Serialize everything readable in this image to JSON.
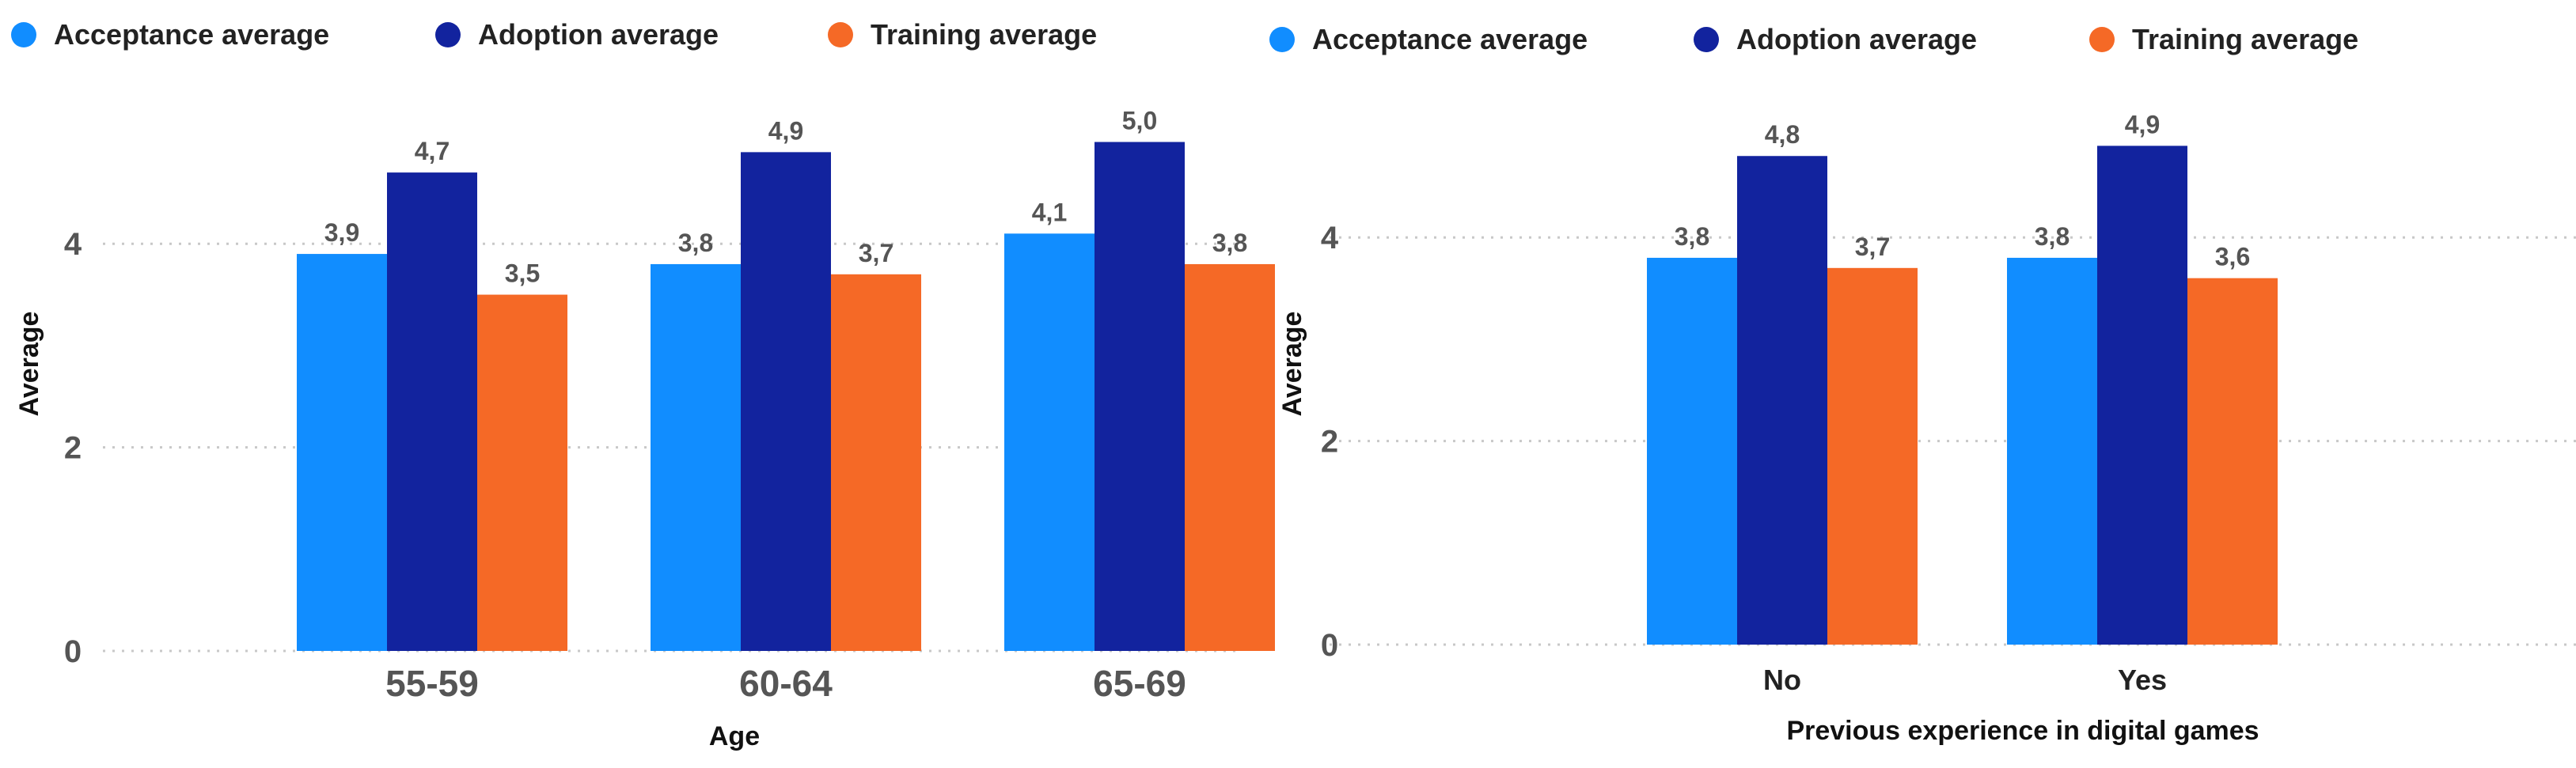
{
  "colors": {
    "acceptance": "#118DFF",
    "adoption": "#12239E",
    "training": "#F56926"
  },
  "chart_data": [
    {
      "type": "bar",
      "title": "",
      "legend": [
        "Acceptance average",
        "Adoption average",
        "Training average"
      ],
      "xlabel": "Age",
      "ylabel": "Average",
      "categories": [
        "55-59",
        "60-64",
        "65-69"
      ],
      "series": [
        {
          "name": "Acceptance average",
          "values": [
            3.9,
            3.8,
            4.1
          ],
          "labels": [
            "3,9",
            "3,8",
            "4,1"
          ]
        },
        {
          "name": "Adoption average",
          "values": [
            4.7,
            4.9,
            5.0
          ],
          "labels": [
            "4,7",
            "4,9",
            "5,0"
          ]
        },
        {
          "name": "Training average",
          "values": [
            3.5,
            3.7,
            3.8
          ],
          "labels": [
            "3,5",
            "3,7",
            "3,8"
          ]
        }
      ],
      "yticks": [
        "0",
        "2",
        "4"
      ],
      "ytick_values": [
        0,
        2,
        4
      ],
      "ylim": [
        0,
        5.5
      ],
      "grid": true
    },
    {
      "type": "bar",
      "title": "",
      "legend": [
        "Acceptance average",
        "Adoption average",
        "Training average"
      ],
      "xlabel": "Previous experience in digital games",
      "ylabel": "Average",
      "categories": [
        "No",
        "Yes"
      ],
      "series": [
        {
          "name": "Acceptance average",
          "values": [
            3.8,
            3.8
          ],
          "labels": [
            "3,8",
            "3,8"
          ]
        },
        {
          "name": "Adoption average",
          "values": [
            4.8,
            4.9
          ],
          "labels": [
            "4,8",
            "4,9"
          ]
        },
        {
          "name": "Training average",
          "values": [
            3.7,
            3.6
          ],
          "labels": [
            "3,7",
            "3,6"
          ]
        }
      ],
      "yticks": [
        "0",
        "2",
        "4"
      ],
      "ytick_values": [
        0,
        2,
        4
      ],
      "ylim": [
        0,
        5.5
      ],
      "grid": true
    }
  ]
}
